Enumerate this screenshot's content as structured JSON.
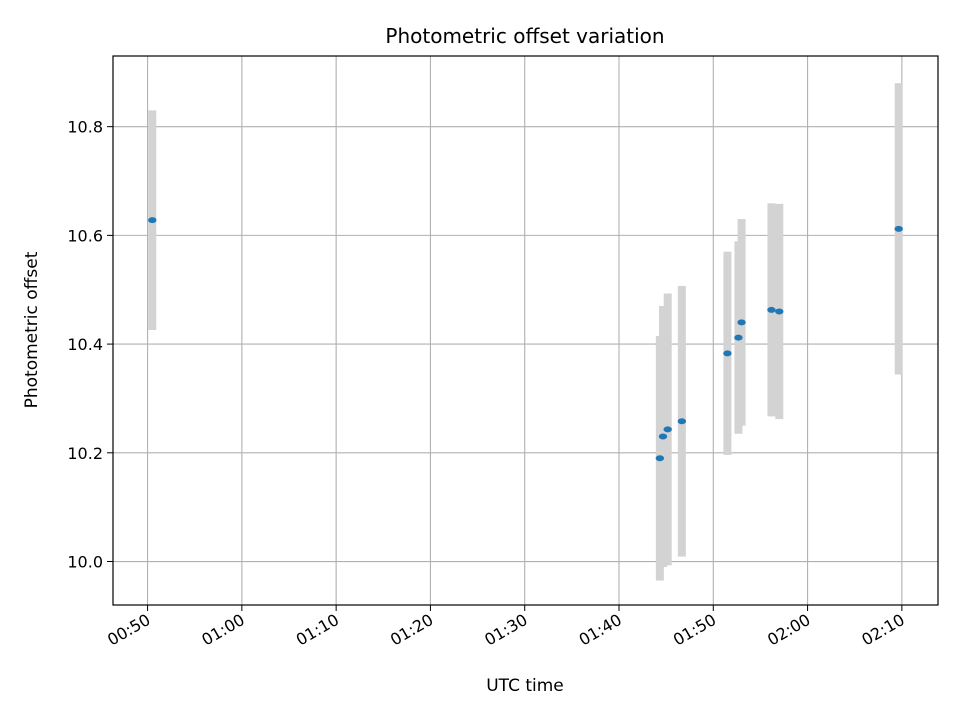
{
  "chart_data": {
    "type": "scatter",
    "title": "Photometric offset variation",
    "xlabel": "UTC time",
    "ylabel": "Photometric offset",
    "x_ticks": [
      "00:50",
      "01:00",
      "01:10",
      "01:20",
      "01:30",
      "01:40",
      "01:50",
      "02:00",
      "02:10"
    ],
    "y_ticks": [
      "10.0",
      "10.2",
      "10.4",
      "10.6",
      "10.8"
    ],
    "xlim": [
      "00:46:20",
      "02:13:50"
    ],
    "ylim": [
      9.92,
      10.93
    ],
    "grid": true,
    "marker_color": "#1f77b4",
    "errorbar_color": "#d3d3d3",
    "points": [
      {
        "x": "00:50:30",
        "y": 10.628,
        "err": 0.202
      },
      {
        "x": "01:44:20",
        "y": 10.19,
        "err": 0.225
      },
      {
        "x": "01:44:40",
        "y": 10.23,
        "err": 0.24
      },
      {
        "x": "01:45:10",
        "y": 10.243,
        "err": 0.25
      },
      {
        "x": "01:46:40",
        "y": 10.258,
        "err": 0.249
      },
      {
        "x": "01:51:30",
        "y": 10.383,
        "err": 0.187
      },
      {
        "x": "01:52:40",
        "y": 10.412,
        "err": 0.177
      },
      {
        "x": "01:53:00",
        "y": 10.44,
        "err": 0.19
      },
      {
        "x": "01:56:10",
        "y": 10.463,
        "err": 0.196
      },
      {
        "x": "01:57:00",
        "y": 10.46,
        "err": 0.198
      },
      {
        "x": "02:09:40",
        "y": 10.612,
        "err": 0.268
      }
    ]
  }
}
